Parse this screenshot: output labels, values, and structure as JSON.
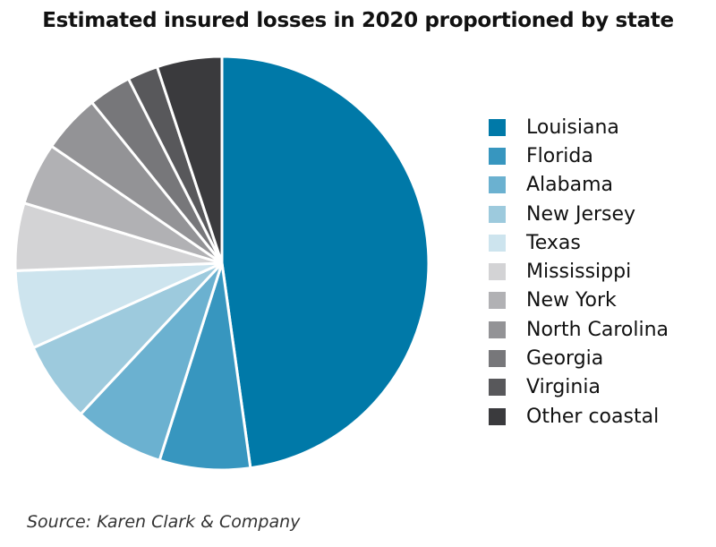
{
  "chart_data": {
    "type": "pie",
    "title": "Estimated insured losses in 2020 proportioned by state",
    "start_angle_deg": 0,
    "direction": "clockwise",
    "legend_position": "right",
    "slices": [
      {
        "label": "Louisiana",
        "value": 49.9,
        "color": "#0079A8"
      },
      {
        "label": "Florida",
        "value": 7.4,
        "color": "#3796BF"
      },
      {
        "label": "Alabama",
        "value": 7.4,
        "color": "#6BB1D0"
      },
      {
        "label": "New Jersey",
        "value": 6.6,
        "color": "#9DCADD"
      },
      {
        "label": "Texas",
        "value": 6.4,
        "color": "#CDE4EE"
      },
      {
        "label": "Mississippi",
        "value": 5.5,
        "color": "#D3D3D5"
      },
      {
        "label": "New York",
        "value": 5.1,
        "color": "#B1B1B4"
      },
      {
        "label": "North Carolina",
        "value": 4.8,
        "color": "#939396"
      },
      {
        "label": "Georgia",
        "value": 3.5,
        "color": "#77777A"
      },
      {
        "label": "Virginia",
        "value": 2.5,
        "color": "#58585B"
      },
      {
        "label": "Other coastal",
        "value": 5.3,
        "color": "#3A3A3D"
      }
    ]
  },
  "footer": {
    "source": "Source: Karen Clark & Company"
  }
}
